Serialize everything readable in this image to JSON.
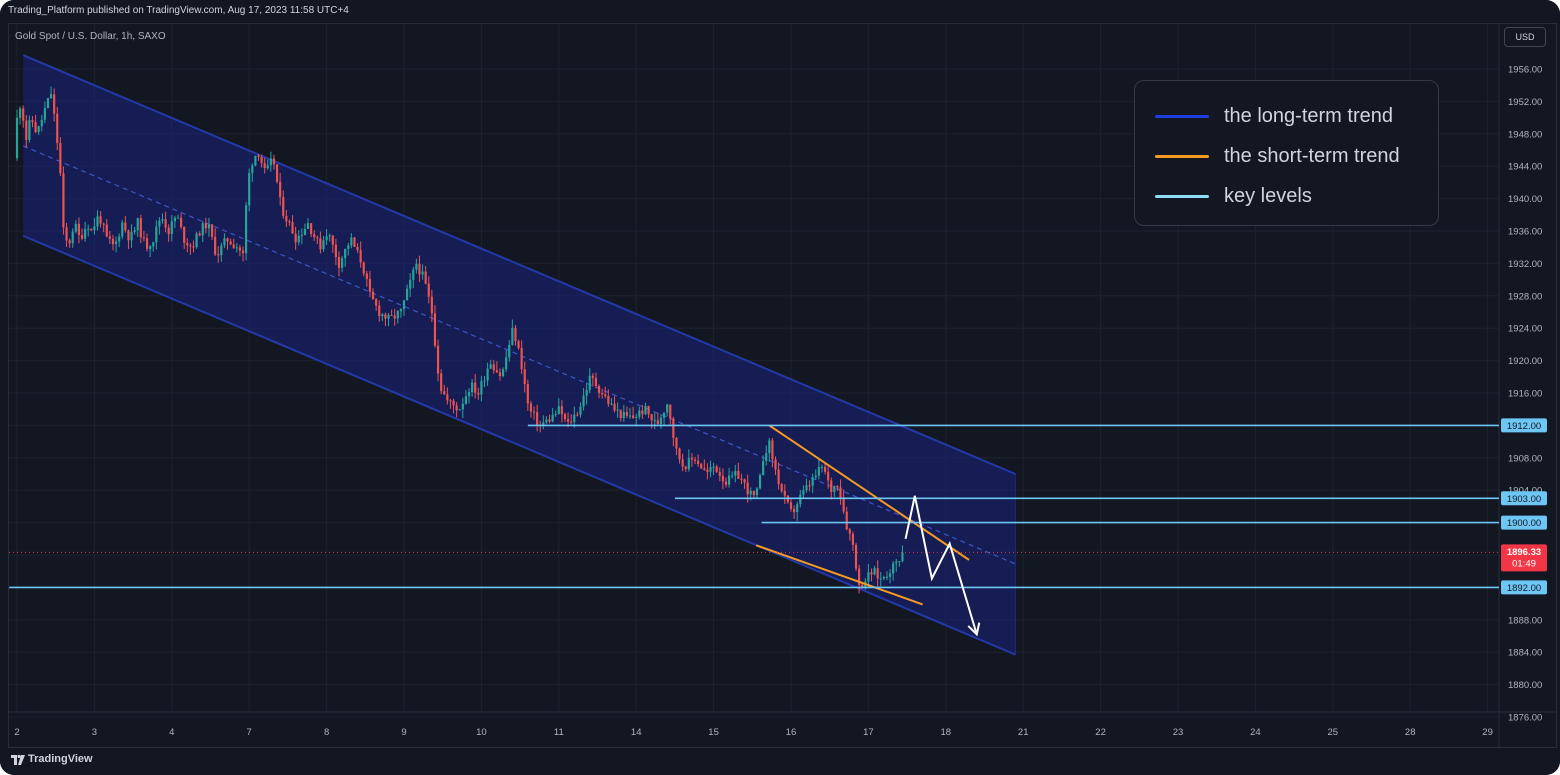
{
  "header": {
    "published": "Trading_Platform published on TradingView.com, Aug 17, 2023 11:58 UTC+4"
  },
  "symbol_label": "Gold Spot / U.S. Dollar, 1h, SAXO",
  "currency_button": "USD",
  "legend": {
    "items": [
      {
        "label": "the long-term trend",
        "color": "#1f3fe0"
      },
      {
        "label": "the short-term trend",
        "color": "#f59a23"
      },
      {
        "label": "key levels",
        "color": "#8fdcf6"
      }
    ]
  },
  "footer": {
    "brand": "TradingView",
    "logo_icon": "tradingview-logo-icon"
  },
  "colors": {
    "background": "#131722",
    "up_candle": "#26a69a",
    "down_candle": "#ef5350",
    "channel_fill": "#1a237e",
    "channel_line": "#2339a8",
    "key_level": "#6ec6f5",
    "price_tag": "#f23645"
  },
  "chart_data": {
    "type": "candlestick",
    "title": "Gold Spot / U.S. Dollar, 1h, SAXO",
    "ylim": [
      1874,
      1958
    ],
    "y_ticks": [
      1956,
      1952,
      1948,
      1944,
      1940,
      1936,
      1932,
      1928,
      1924,
      1920,
      1916,
      1912,
      1908,
      1904,
      1900,
      1896,
      1892,
      1888,
      1884,
      1880,
      1876
    ],
    "x_ticks": [
      "2",
      "3",
      "4",
      "7",
      "8",
      "9",
      "10",
      "11",
      "14",
      "15",
      "16",
      "17",
      "18",
      "21",
      "22",
      "23",
      "24",
      "25",
      "28",
      "29"
    ],
    "x_tick_index": [
      0,
      1,
      2,
      3,
      4,
      5,
      6,
      7,
      8,
      9,
      10,
      11,
      12,
      13,
      14,
      15,
      16,
      17,
      18,
      19
    ],
    "last_price": {
      "value": 1896.33,
      "label": "1896.33",
      "countdown": "01:49"
    },
    "key_levels": [
      {
        "value": 1912.0,
        "label": "1912.00",
        "from_x": 6.6
      },
      {
        "value": 1903.0,
        "label": "1903.00",
        "from_x": 8.5
      },
      {
        "value": 1900.0,
        "label": "1900.00",
        "from_x": 9.62
      },
      {
        "value": 1892.0,
        "label": "1892.00",
        "from_x": -0.1
      }
    ],
    "long_term_channel": {
      "upper": [
        [
          0.08,
          1957.7
        ],
        [
          12.9,
          1906.0
        ]
      ],
      "lower": [
        [
          0.08,
          1935.4
        ],
        [
          12.9,
          1883.7
        ]
      ],
      "midline": [
        [
          0.08,
          1946.5
        ],
        [
          12.9,
          1894.9
        ]
      ]
    },
    "short_term_trend": {
      "upper": [
        [
          9.72,
          1912.0
        ],
        [
          12.3,
          1895.4
        ]
      ],
      "lower": [
        [
          9.55,
          1897.2
        ],
        [
          11.7,
          1889.9
        ]
      ]
    },
    "projection_path": [
      [
        11.48,
        1898.0
      ],
      [
        11.6,
        1903.3
      ],
      [
        11.82,
        1893.1
      ],
      [
        12.05,
        1897.4
      ],
      [
        12.4,
        1886.2
      ]
    ],
    "price_path": [
      [
        0.0,
        1945
      ],
      [
        0.05,
        1951
      ],
      [
        0.1,
        1952
      ],
      [
        0.15,
        1947
      ],
      [
        0.22,
        1950
      ],
      [
        0.3,
        1948
      ],
      [
        0.4,
        1951
      ],
      [
        0.48,
        1953
      ],
      [
        0.55,
        1948
      ],
      [
        0.6,
        1943
      ],
      [
        0.64,
        1936
      ],
      [
        0.7,
        1934
      ],
      [
        0.78,
        1937
      ],
      [
        0.85,
        1935
      ],
      [
        0.95,
        1937
      ],
      [
        1.0,
        1936
      ],
      [
        1.1,
        1938
      ],
      [
        1.2,
        1935
      ],
      [
        1.3,
        1934
      ],
      [
        1.4,
        1937
      ],
      [
        1.5,
        1935
      ],
      [
        1.6,
        1937
      ],
      [
        1.7,
        1934
      ],
      [
        1.8,
        1935
      ],
      [
        1.9,
        1938
      ],
      [
        2.0,
        1936
      ],
      [
        2.1,
        1938
      ],
      [
        2.2,
        1935
      ],
      [
        2.3,
        1934
      ],
      [
        2.4,
        1936
      ],
      [
        2.5,
        1937
      ],
      [
        2.62,
        1933
      ],
      [
        2.75,
        1935
      ],
      [
        2.9,
        1934
      ],
      [
        2.96,
        1933
      ],
      [
        3.0,
        1939
      ],
      [
        3.05,
        1944
      ],
      [
        3.15,
        1946
      ],
      [
        3.25,
        1943
      ],
      [
        3.35,
        1945
      ],
      [
        3.45,
        1939
      ],
      [
        3.55,
        1937
      ],
      [
        3.65,
        1935
      ],
      [
        3.8,
        1937
      ],
      [
        3.95,
        1934
      ],
      [
        4.05,
        1936
      ],
      [
        4.2,
        1932
      ],
      [
        4.35,
        1935
      ],
      [
        4.5,
        1932
      ],
      [
        4.6,
        1928
      ],
      [
        4.72,
        1926
      ],
      [
        4.85,
        1925
      ],
      [
        5.0,
        1926
      ],
      [
        5.1,
        1929
      ],
      [
        5.2,
        1932
      ],
      [
        5.3,
        1930
      ],
      [
        5.4,
        1926
      ],
      [
        5.5,
        1917
      ],
      [
        5.6,
        1915
      ],
      [
        5.75,
        1914
      ],
      [
        5.9,
        1917
      ],
      [
        6.0,
        1916
      ],
      [
        6.15,
        1920
      ],
      [
        6.3,
        1918
      ],
      [
        6.45,
        1924
      ],
      [
        6.55,
        1920
      ],
      [
        6.65,
        1914
      ],
      [
        6.8,
        1912
      ],
      [
        6.95,
        1913
      ],
      [
        7.05,
        1914
      ],
      [
        7.15,
        1912
      ],
      [
        7.3,
        1914
      ],
      [
        7.45,
        1918
      ],
      [
        7.6,
        1916
      ],
      [
        7.75,
        1914
      ],
      [
        7.9,
        1913
      ],
      [
        8.0,
        1913
      ],
      [
        8.15,
        1914
      ],
      [
        8.3,
        1912
      ],
      [
        8.45,
        1915
      ],
      [
        8.55,
        1909
      ],
      [
        8.65,
        1907
      ],
      [
        8.8,
        1908
      ],
      [
        8.95,
        1906
      ],
      [
        9.05,
        1907
      ],
      [
        9.2,
        1905
      ],
      [
        9.35,
        1906
      ],
      [
        9.55,
        1903
      ],
      [
        9.62,
        1904
      ],
      [
        9.68,
        1908
      ],
      [
        9.75,
        1910
      ],
      [
        9.85,
        1906
      ],
      [
        9.95,
        1903
      ],
      [
        10.05,
        1901
      ],
      [
        10.15,
        1903
      ],
      [
        10.3,
        1905
      ],
      [
        10.45,
        1907
      ],
      [
        10.55,
        1904
      ],
      [
        10.65,
        1905
      ],
      [
        10.75,
        1900
      ],
      [
        10.85,
        1897
      ],
      [
        10.92,
        1892
      ],
      [
        11.0,
        1893
      ],
      [
        11.1,
        1894
      ],
      [
        11.2,
        1893
      ],
      [
        11.3,
        1894
      ],
      [
        11.4,
        1895
      ],
      [
        11.47,
        1896.33
      ]
    ],
    "candle_interval": 0.04
  }
}
